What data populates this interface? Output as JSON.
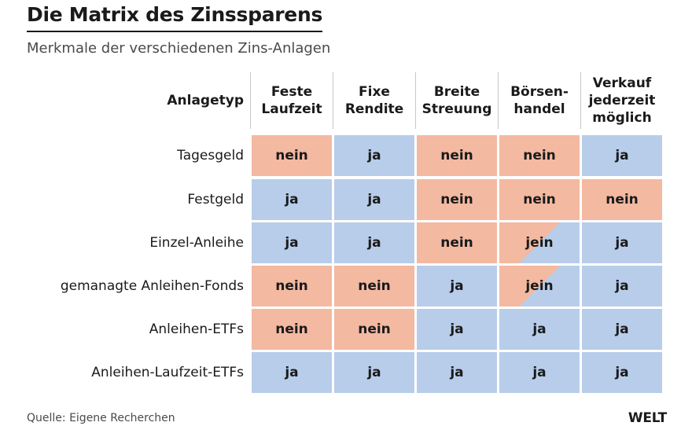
{
  "title": "Die Matrix des Zinssparens",
  "subtitle": "Merkmale der verschiedenen Zins-Anlagen",
  "chart_data": {
    "type": "table",
    "row_header_title": "Anlagetyp",
    "columns": [
      "Feste\nLaufzeit",
      "Fixe\nRendite",
      "Breite\nStreuung",
      "Börsen-\nhandel",
      "Verkauf\njederzeit\nmöglich"
    ],
    "rows": [
      {
        "label": "Tagesgeld",
        "values": [
          "nein",
          "ja",
          "nein",
          "nein",
          "ja"
        ]
      },
      {
        "label": "Festgeld",
        "values": [
          "ja",
          "ja",
          "nein",
          "nein",
          "nein"
        ]
      },
      {
        "label": "Einzel-Anleihe",
        "values": [
          "ja",
          "ja",
          "nein",
          "jein",
          "ja"
        ]
      },
      {
        "label": "gemanagte Anleihen-Fonds",
        "values": [
          "nein",
          "nein",
          "ja",
          "jein",
          "ja"
        ]
      },
      {
        "label": "Anleihen-ETFs",
        "values": [
          "nein",
          "nein",
          "ja",
          "ja",
          "ja"
        ]
      },
      {
        "label": "Anleihen-Laufzeit-ETFs",
        "values": [
          "ja",
          "ja",
          "ja",
          "ja",
          "ja"
        ]
      }
    ],
    "colors": {
      "ja": "#b7cdea",
      "nein": "#f3b9a1"
    }
  },
  "source": "Quelle: Eigene Recherchen",
  "logo": "WELT"
}
